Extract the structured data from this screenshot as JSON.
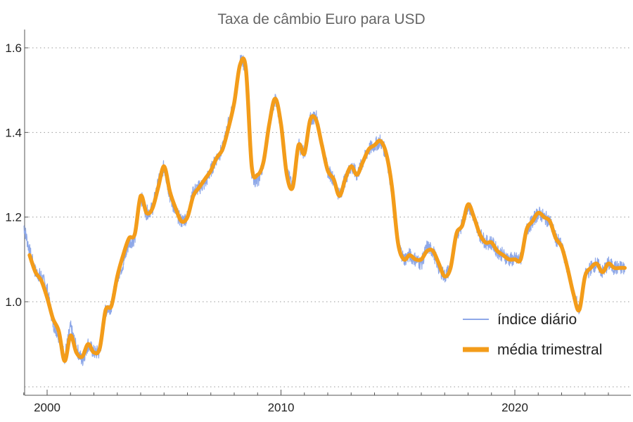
{
  "chart_data": {
    "type": "line",
    "title": "Taxa de câmbio Euro para USD",
    "xlabel": "",
    "ylabel": "",
    "xlim": [
      1999,
      2024.8
    ],
    "ylim": [
      0.8,
      1.65
    ],
    "x_ticks": [
      2000,
      2010,
      2020
    ],
    "x_tick_labels": [
      "2000",
      "2010",
      "2020"
    ],
    "y_ticks": [
      1.0,
      1.2,
      1.4,
      1.6
    ],
    "y_tick_labels": [
      "1.0",
      "1.2",
      "1.4",
      "1.6"
    ],
    "grid": "horizontal dotted",
    "legend_position": "bottom-right",
    "series": [
      {
        "name": "índice diário",
        "color": "#8ea8e8",
        "x": [
          1999.0,
          1999.25,
          1999.5,
          1999.75,
          2000.0,
          2000.25,
          2000.5,
          2000.75,
          2001.0,
          2001.25,
          2001.5,
          2001.75,
          2002.0,
          2002.25,
          2002.5,
          2002.75,
          2003.0,
          2003.25,
          2003.5,
          2003.75,
          2004.0,
          2004.25,
          2004.5,
          2004.75,
          2005.0,
          2005.25,
          2005.5,
          2005.75,
          2006.0,
          2006.25,
          2006.5,
          2006.75,
          2007.0,
          2007.25,
          2007.5,
          2007.75,
          2008.0,
          2008.25,
          2008.5,
          2008.75,
          2009.0,
          2009.25,
          2009.5,
          2009.75,
          2010.0,
          2010.25,
          2010.5,
          2010.75,
          2011.0,
          2011.25,
          2011.5,
          2011.75,
          2012.0,
          2012.25,
          2012.5,
          2012.75,
          2013.0,
          2013.25,
          2013.5,
          2013.75,
          2014.0,
          2014.25,
          2014.5,
          2014.75,
          2015.0,
          2015.25,
          2015.5,
          2015.75,
          2016.0,
          2016.25,
          2016.5,
          2016.75,
          2017.0,
          2017.25,
          2017.5,
          2017.75,
          2018.0,
          2018.25,
          2018.5,
          2018.75,
          2019.0,
          2019.25,
          2019.5,
          2019.75,
          2020.0,
          2020.25,
          2020.5,
          2020.75,
          2021.0,
          2021.25,
          2021.5,
          2021.75,
          2022.0,
          2022.25,
          2022.5,
          2022.75,
          2023.0,
          2023.25,
          2023.5,
          2023.75,
          2024.0,
          2024.25,
          2024.5,
          2024.7
        ],
        "y": [
          1.18,
          1.12,
          1.07,
          1.06,
          1.03,
          0.95,
          0.92,
          0.87,
          0.94,
          0.89,
          0.86,
          0.9,
          0.88,
          0.88,
          0.98,
          0.99,
          1.06,
          1.09,
          1.14,
          1.15,
          1.25,
          1.21,
          1.22,
          1.28,
          1.32,
          1.25,
          1.21,
          1.19,
          1.2,
          1.26,
          1.27,
          1.28,
          1.31,
          1.34,
          1.36,
          1.42,
          1.47,
          1.57,
          1.56,
          1.3,
          1.28,
          1.33,
          1.42,
          1.48,
          1.42,
          1.3,
          1.28,
          1.37,
          1.35,
          1.43,
          1.44,
          1.37,
          1.31,
          1.29,
          1.25,
          1.29,
          1.32,
          1.3,
          1.33,
          1.36,
          1.37,
          1.38,
          1.35,
          1.26,
          1.14,
          1.1,
          1.11,
          1.1,
          1.09,
          1.13,
          1.12,
          1.08,
          1.06,
          1.08,
          1.16,
          1.18,
          1.23,
          1.2,
          1.16,
          1.14,
          1.14,
          1.12,
          1.11,
          1.1,
          1.1,
          1.1,
          1.17,
          1.19,
          1.21,
          1.2,
          1.19,
          1.15,
          1.13,
          1.08,
          1.02,
          0.98,
          1.06,
          1.08,
          1.09,
          1.07,
          1.09,
          1.08,
          1.08,
          1.08
        ]
      },
      {
        "name": "média trimestral",
        "color": "#f39c1a",
        "x": [
          1999.25,
          1999.5,
          1999.75,
          2000.0,
          2000.25,
          2000.5,
          2000.75,
          2001.0,
          2001.25,
          2001.5,
          2001.75,
          2002.0,
          2002.25,
          2002.5,
          2002.75,
          2003.0,
          2003.25,
          2003.5,
          2003.75,
          2004.0,
          2004.25,
          2004.5,
          2004.75,
          2005.0,
          2005.25,
          2005.5,
          2005.75,
          2006.0,
          2006.25,
          2006.5,
          2006.75,
          2007.0,
          2007.25,
          2007.5,
          2007.75,
          2008.0,
          2008.25,
          2008.5,
          2008.75,
          2009.0,
          2009.25,
          2009.5,
          2009.75,
          2010.0,
          2010.25,
          2010.5,
          2010.75,
          2011.0,
          2011.25,
          2011.5,
          2011.75,
          2012.0,
          2012.25,
          2012.5,
          2012.75,
          2013.0,
          2013.25,
          2013.5,
          2013.75,
          2014.0,
          2014.25,
          2014.5,
          2014.75,
          2015.0,
          2015.25,
          2015.5,
          2015.75,
          2016.0,
          2016.25,
          2016.5,
          2016.75,
          2017.0,
          2017.25,
          2017.5,
          2017.75,
          2018.0,
          2018.25,
          2018.5,
          2018.75,
          2019.0,
          2019.25,
          2019.5,
          2019.75,
          2020.0,
          2020.25,
          2020.5,
          2020.75,
          2021.0,
          2021.25,
          2021.5,
          2021.75,
          2022.0,
          2022.25,
          2022.5,
          2022.75,
          2023.0,
          2023.25,
          2023.5,
          2023.75,
          2024.0,
          2024.25,
          2024.5,
          2024.7
        ],
        "y": [
          1.11,
          1.07,
          1.05,
          1.01,
          0.96,
          0.93,
          0.86,
          0.92,
          0.88,
          0.87,
          0.9,
          0.88,
          0.89,
          0.98,
          0.99,
          1.06,
          1.11,
          1.15,
          1.16,
          1.25,
          1.21,
          1.22,
          1.27,
          1.32,
          1.26,
          1.22,
          1.19,
          1.2,
          1.25,
          1.27,
          1.29,
          1.31,
          1.34,
          1.36,
          1.41,
          1.47,
          1.56,
          1.55,
          1.32,
          1.3,
          1.33,
          1.42,
          1.48,
          1.42,
          1.3,
          1.27,
          1.37,
          1.35,
          1.43,
          1.43,
          1.37,
          1.31,
          1.29,
          1.25,
          1.29,
          1.32,
          1.3,
          1.33,
          1.36,
          1.37,
          1.38,
          1.35,
          1.27,
          1.14,
          1.1,
          1.11,
          1.1,
          1.1,
          1.12,
          1.12,
          1.09,
          1.06,
          1.08,
          1.16,
          1.18,
          1.23,
          1.2,
          1.16,
          1.14,
          1.14,
          1.12,
          1.11,
          1.1,
          1.1,
          1.1,
          1.17,
          1.19,
          1.21,
          1.2,
          1.19,
          1.15,
          1.13,
          1.08,
          1.02,
          0.98,
          1.06,
          1.08,
          1.09,
          1.07,
          1.09,
          1.08,
          1.08,
          1.08
        ]
      }
    ]
  }
}
